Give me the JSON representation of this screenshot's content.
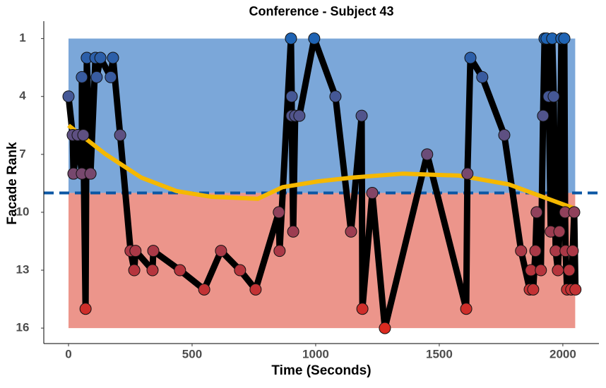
{
  "chart_data": {
    "type": "line",
    "title": "Conference - Subject 43",
    "x_label": "Time (Seconds)",
    "y_label": "Facade Rank",
    "xlim": [
      -100,
      2146
    ],
    "ylim": [
      16.8,
      0.1
    ],
    "xticks": [
      0,
      500,
      1000,
      1500,
      2000
    ],
    "yticks": [
      1,
      4,
      7,
      10,
      13,
      16
    ],
    "grid": false,
    "regions": [
      {
        "x": [
          0,
          2050
        ],
        "y": [
          1,
          9
        ],
        "color": "#7ba7d9"
      },
      {
        "x": [
          0,
          2050
        ],
        "y": [
          9,
          16
        ],
        "color": "#ec958b"
      }
    ],
    "threshold": {
      "value": 9,
      "color": "#0b57a4"
    },
    "point_colors": [
      "#1f63b3",
      "#dc2a20"
    ],
    "x": [
      0,
      17,
      20,
      37,
      54,
      54,
      60,
      69,
      74,
      89,
      109,
      114,
      129,
      171,
      180,
      209,
      251,
      266,
      271,
      340,
      343,
      451,
      549,
      617,
      694,
      757,
      851,
      854,
      900,
      903,
      903,
      909,
      917,
      934,
      994,
      1080,
      1143,
      1186,
      1189,
      1229,
      1280,
      1451,
      1609,
      1614,
      1626,
      1674,
      1763,
      1831,
      1866,
      1871,
      1880,
      1889,
      1894,
      1911,
      1920,
      1926,
      1934,
      1943,
      1951,
      1957,
      1963,
      1971,
      1980,
      1986,
      1994,
      2006,
      2009,
      2011,
      2017,
      2026,
      2034,
      2040,
      2046,
      2051
    ],
    "series": [
      {
        "color": "#000000",
        "values": [
          4,
          6,
          8,
          6,
          8,
          3,
          6,
          15,
          2,
          8,
          2,
          3,
          2,
          3,
          2,
          6,
          12,
          13,
          12,
          13,
          12,
          13,
          14,
          12,
          13,
          14,
          10,
          12,
          1,
          4,
          5,
          11,
          5,
          5,
          1,
          4,
          11,
          5,
          15,
          9,
          16,
          7,
          15,
          8,
          2,
          3,
          6,
          12,
          14,
          13,
          14,
          12,
          10,
          13,
          5,
          1,
          1,
          4,
          11,
          1,
          4,
          12,
          13,
          11,
          1,
          1,
          10,
          12,
          14,
          13,
          14,
          12,
          10,
          14
        ]
      }
    ],
    "smooth": {
      "color": "#f5b800",
      "x": [
        0,
        151,
        294,
        437,
        580,
        766,
        866,
        1009,
        1151,
        1351,
        1580,
        1780,
        2046
      ],
      "values": [
        5.5,
        7.0,
        8.2,
        8.9,
        9.2,
        9.3,
        8.7,
        8.4,
        8.2,
        8.0,
        8.1,
        8.55,
        9.8
      ]
    }
  }
}
